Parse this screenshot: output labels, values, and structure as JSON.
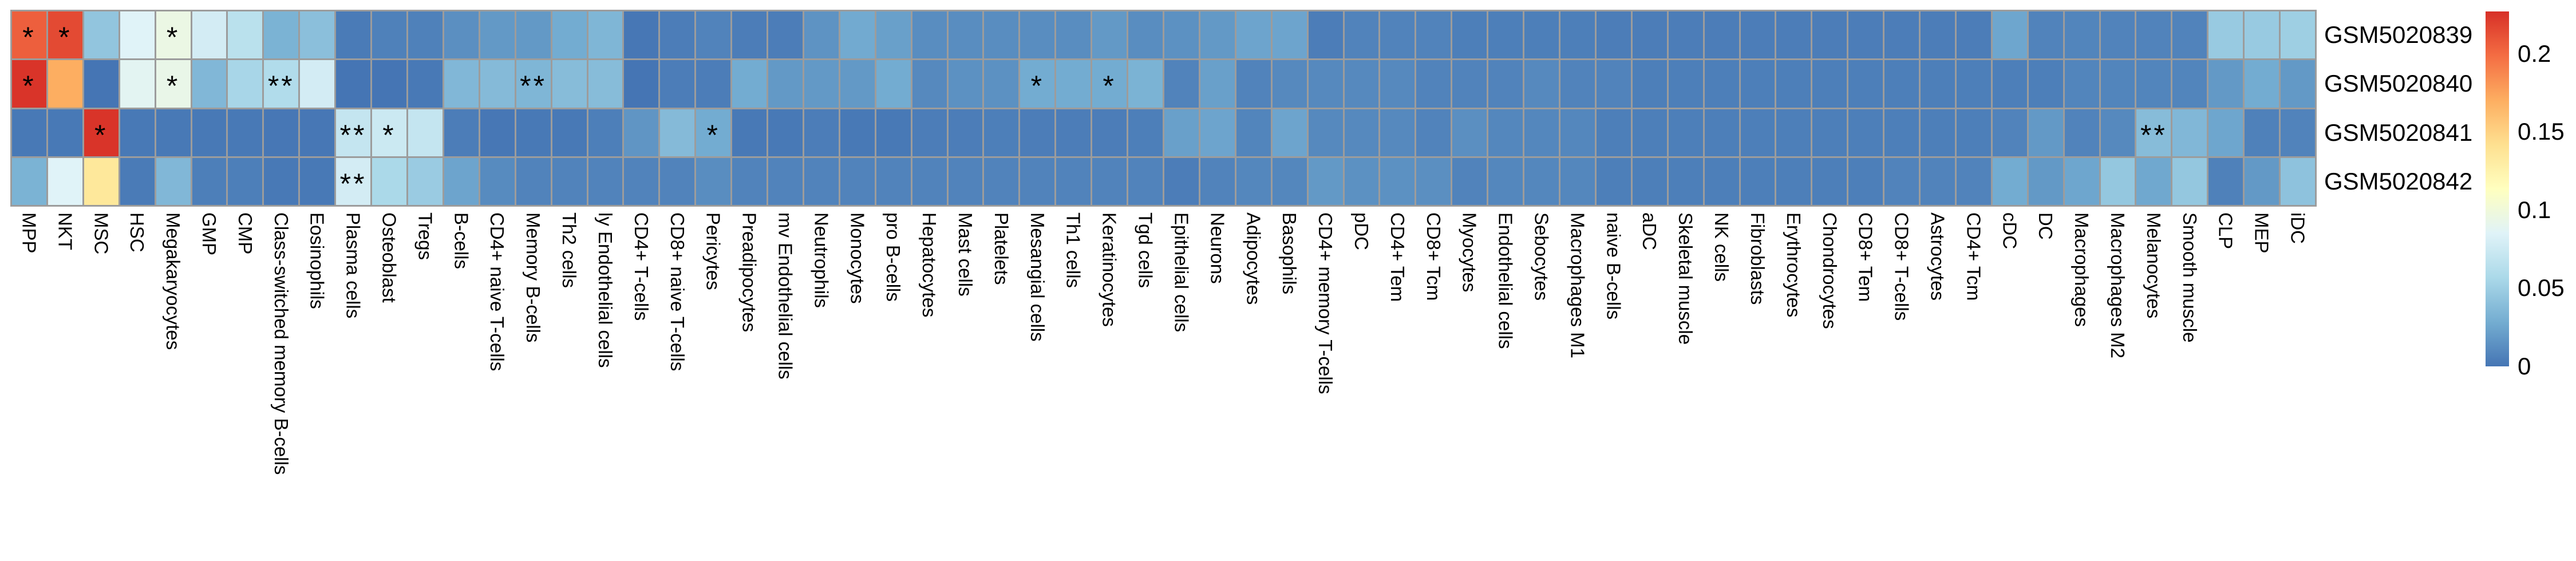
{
  "figure": {
    "background_color": "#ffffff",
    "grid_line_color": "#9c9c9c",
    "text_color": "#000000"
  },
  "chart_data": {
    "type": "heatmap",
    "title": "",
    "xlabel": "",
    "ylabel": "",
    "legend_position": "right",
    "rows": [
      "GSM5020839",
      "GSM5020840",
      "GSM5020841",
      "GSM5020842"
    ],
    "columns": [
      "MPP",
      "NKT",
      "MSC",
      "HSC",
      "Megakaryocytes",
      "GMP",
      "CMP",
      "Class-switched memory B-cells",
      "Eosinophils",
      "Plasma cells",
      "Osteoblast",
      "Tregs",
      "B-cells",
      "CD4+ naive T-cells",
      "Memory B-cells",
      "Th2 cells",
      "ly Endothelial cells",
      "CD4+ T-cells",
      "CD8+ naive T-cells",
      "Pericytes",
      "Preadipocytes",
      "mv Endothelial cells",
      "Neutrophils",
      "Monocytes",
      "pro B-cells",
      "Hepatocytes",
      "Mast cells",
      "Platelets",
      "Mesangial cells",
      "Th1 cells",
      "Keratinocytes",
      "Tgd cells",
      "Epithelial cells",
      "Neurons",
      "Adipocytes",
      "Basophils",
      "CD4+ memory T-cells",
      "pDC",
      "CD4+ Tem",
      "CD8+ Tcm",
      "Myocytes",
      "Endothelial cells",
      "Sebocytes",
      "Macrophages M1",
      "naive B-cells",
      "aDC",
      "Skeletal muscle",
      "NK cells",
      "Fibroblasts",
      "Erythrocytes",
      "Chondrocytes",
      "CD8+ Tem",
      "CD8+ T-cells",
      "Astrocytes",
      "CD4+ Tcm",
      "cDC",
      "DC",
      "Macrophages",
      "Macrophages M2",
      "Melanocytes",
      "Smooth muscle",
      "CLP",
      "MEP",
      "iDC"
    ],
    "values": [
      [
        0.205,
        0.215,
        0.044,
        0.085,
        0.095,
        0.078,
        0.065,
        0.032,
        0.04,
        0.003,
        0.006,
        0.006,
        0.013,
        0.018,
        0.018,
        0.028,
        0.034,
        0.001,
        0.004,
        0.007,
        0.004,
        0.004,
        0.015,
        0.027,
        0.022,
        0.012,
        0.012,
        0.012,
        0.012,
        0.012,
        0.018,
        0.012,
        0.014,
        0.018,
        0.024,
        0.024,
        0.004,
        0.007,
        0.007,
        0.007,
        0.005,
        0.005,
        0.005,
        0.005,
        0.004,
        0.004,
        0.004,
        0.004,
        0.004,
        0.004,
        0.004,
        0.004,
        0.004,
        0.004,
        0.004,
        0.025,
        0.007,
        0.008,
        0.007,
        0.007,
        0.007,
        0.047,
        0.047,
        0.05
      ],
      [
        0.225,
        0.17,
        0.0,
        0.088,
        0.093,
        0.035,
        0.055,
        0.06,
        0.078,
        0.0,
        0.0,
        0.002,
        0.035,
        0.037,
        0.034,
        0.038,
        0.038,
        0.0,
        0.004,
        0.004,
        0.028,
        0.018,
        0.018,
        0.018,
        0.028,
        0.01,
        0.014,
        0.014,
        0.028,
        0.028,
        0.028,
        0.032,
        0.007,
        0.022,
        0.007,
        0.01,
        0.01,
        0.01,
        0.01,
        0.007,
        0.007,
        0.007,
        0.01,
        0.007,
        0.007,
        0.005,
        0.005,
        0.005,
        0.005,
        0.005,
        0.005,
        0.005,
        0.005,
        0.005,
        0.005,
        0.005,
        0.005,
        0.008,
        0.008,
        0.008,
        0.008,
        0.018,
        0.028,
        0.018
      ],
      [
        0.002,
        0.002,
        0.225,
        0.002,
        0.002,
        0.002,
        0.002,
        0.001,
        0.001,
        0.07,
        0.074,
        0.07,
        0.004,
        0.001,
        0.002,
        0.002,
        0.005,
        0.016,
        0.037,
        0.028,
        0.002,
        0.002,
        0.004,
        0.002,
        0.002,
        0.004,
        0.004,
        0.005,
        0.004,
        0.004,
        0.004,
        0.005,
        0.022,
        0.024,
        0.008,
        0.024,
        0.01,
        0.01,
        0.01,
        0.007,
        0.013,
        0.009,
        0.009,
        0.009,
        0.005,
        0.005,
        0.005,
        0.005,
        0.005,
        0.005,
        0.005,
        0.005,
        0.005,
        0.005,
        0.005,
        0.007,
        0.018,
        0.007,
        0.01,
        0.038,
        0.035,
        0.025,
        0.006,
        0.007
      ],
      [
        0.032,
        0.085,
        0.135,
        0.003,
        0.035,
        0.005,
        0.005,
        0.002,
        0.002,
        0.078,
        0.057,
        0.048,
        0.024,
        0.011,
        0.007,
        0.007,
        0.007,
        0.007,
        0.007,
        0.012,
        0.007,
        0.007,
        0.007,
        0.007,
        0.007,
        0.007,
        0.007,
        0.007,
        0.007,
        0.007,
        0.007,
        0.007,
        0.004,
        0.007,
        0.009,
        0.009,
        0.018,
        0.014,
        0.014,
        0.013,
        0.007,
        0.009,
        0.009,
        0.009,
        0.005,
        0.005,
        0.005,
        0.005,
        0.005,
        0.005,
        0.005,
        0.005,
        0.007,
        0.007,
        0.007,
        0.028,
        0.018,
        0.025,
        0.045,
        0.026,
        0.045,
        0.006,
        0.018,
        0.042
      ]
    ],
    "significance": [
      {
        "row": 0,
        "col": 0,
        "stars": "*"
      },
      {
        "row": 0,
        "col": 1,
        "stars": "*"
      },
      {
        "row": 0,
        "col": 4,
        "stars": "*"
      },
      {
        "row": 1,
        "col": 0,
        "stars": "*"
      },
      {
        "row": 1,
        "col": 4,
        "stars": "*"
      },
      {
        "row": 1,
        "col": 7,
        "stars": "**"
      },
      {
        "row": 1,
        "col": 14,
        "stars": "**"
      },
      {
        "row": 1,
        "col": 28,
        "stars": "*"
      },
      {
        "row": 1,
        "col": 30,
        "stars": "*"
      },
      {
        "row": 2,
        "col": 2,
        "stars": "*"
      },
      {
        "row": 2,
        "col": 9,
        "stars": "**"
      },
      {
        "row": 2,
        "col": 10,
        "stars": "*"
      },
      {
        "row": 2,
        "col": 19,
        "stars": "*"
      },
      {
        "row": 2,
        "col": 59,
        "stars": "**"
      },
      {
        "row": 3,
        "col": 9,
        "stars": "**"
      }
    ],
    "colorbar": {
      "vmin": 0,
      "vmax": 0.227,
      "tick_values": [
        0,
        0.05,
        0.1,
        0.15,
        0.2
      ],
      "tick_labels": [
        "0",
        "0.05",
        "0.1",
        "0.15",
        "0.2"
      ]
    },
    "palette": {
      "name": "RdYlBu-reversed",
      "stops": [
        [
          0.0,
          "#4575b4"
        ],
        [
          0.125,
          "#74add1"
        ],
        [
          0.25,
          "#abd9e9"
        ],
        [
          0.375,
          "#e0f3f8"
        ],
        [
          0.5,
          "#ffffbf"
        ],
        [
          0.625,
          "#fee090"
        ],
        [
          0.75,
          "#fdae61"
        ],
        [
          0.875,
          "#f46d43"
        ],
        [
          1.0,
          "#d73027"
        ]
      ]
    }
  }
}
